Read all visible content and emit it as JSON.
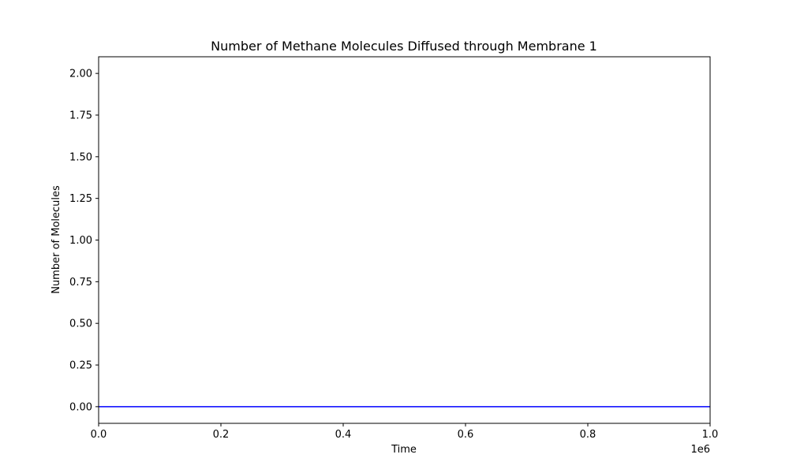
{
  "chart_data": {
    "type": "line",
    "title": "Number of Methane Molecules Diffused through Membrane 1",
    "xlabel": "Time",
    "ylabel": "Number of Molecules",
    "x_offset_label": "1e6",
    "xlim": [
      0,
      1000000
    ],
    "ylim": [
      -0.1,
      2.1
    ],
    "x_ticks": [
      0,
      200000,
      400000,
      600000,
      800000,
      1000000
    ],
    "x_tick_labels": [
      "0.0",
      "0.2",
      "0.4",
      "0.6",
      "0.8",
      "1.0"
    ],
    "y_ticks": [
      0,
      0.25,
      0.5,
      0.75,
      1.0,
      1.25,
      1.5,
      1.75,
      2.0
    ],
    "y_tick_labels": [
      "0.00",
      "0.25",
      "0.50",
      "0.75",
      "1.00",
      "1.25",
      "1.50",
      "1.75",
      "2.00"
    ],
    "grid": false,
    "series": [
      {
        "color": "#0000ff",
        "x": [
          0,
          1000000
        ],
        "y": [
          0,
          0
        ]
      }
    ]
  }
}
